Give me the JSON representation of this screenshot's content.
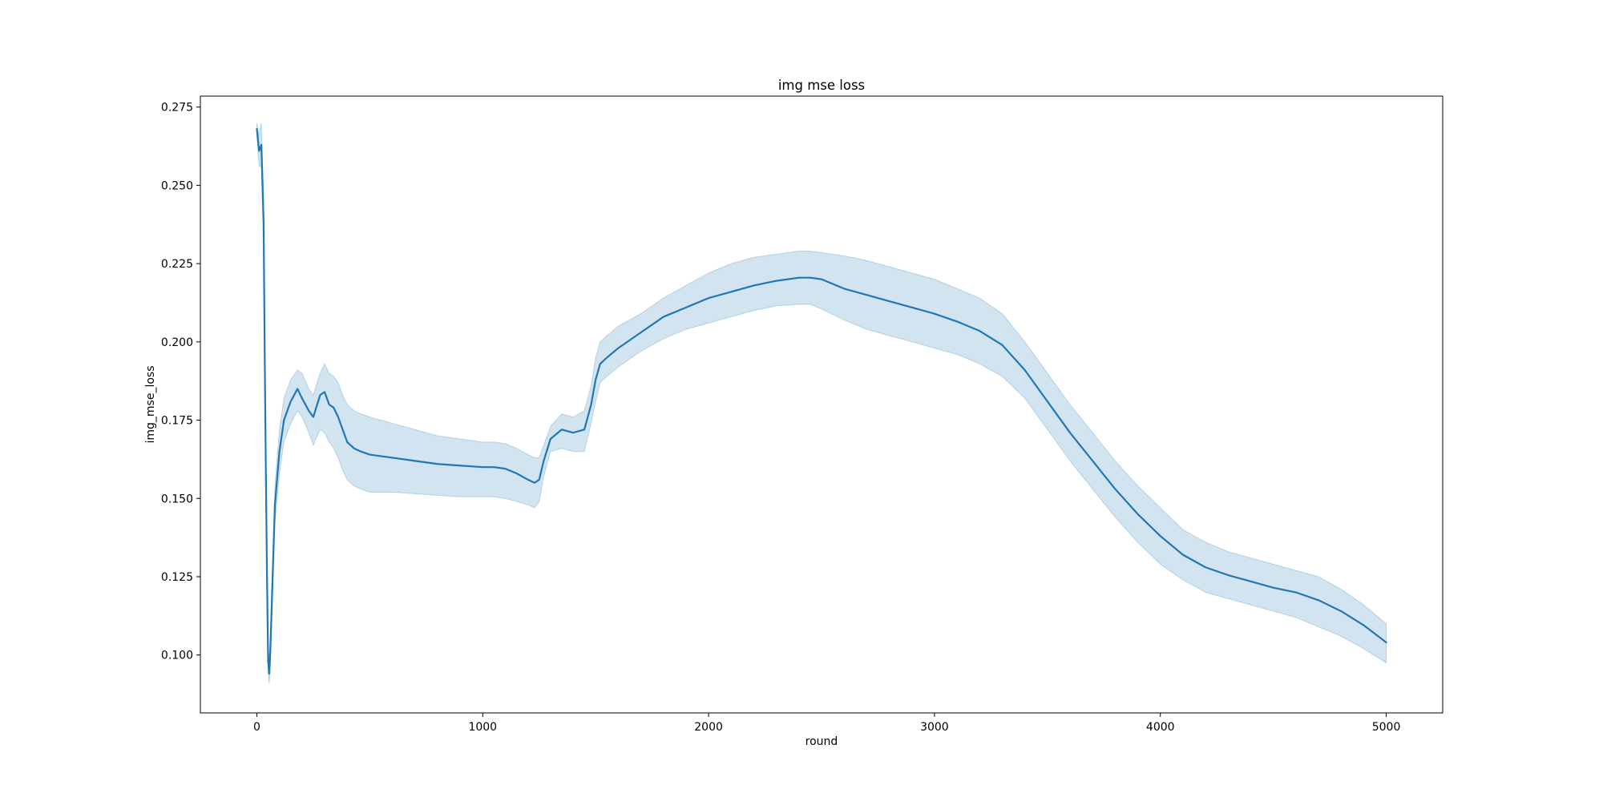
{
  "chart_data": {
    "type": "line",
    "title": "img mse loss",
    "xlabel": "round",
    "ylabel": "img_mse_loss",
    "xlim": [
      -250,
      5250
    ],
    "ylim": [
      0.0815,
      0.2785
    ],
    "xticks": [
      0,
      1000,
      2000,
      3000,
      4000,
      5000
    ],
    "xtick_labels": [
      "0",
      "1000",
      "2000",
      "3000",
      "4000",
      "5000"
    ],
    "yticks": [
      0.1,
      0.125,
      0.15,
      0.175,
      0.2,
      0.225,
      0.25,
      0.275
    ],
    "ytick_labels": [
      "0.100",
      "0.125",
      "0.150",
      "0.175",
      "0.200",
      "0.225",
      "0.250",
      "0.275"
    ],
    "grid": false,
    "legend": "none",
    "series": [
      {
        "color": "#1f77b4",
        "band_color": "#1f77b4",
        "band_opacity": 0.2,
        "x": [
          0,
          10,
          20,
          30,
          35,
          40,
          45,
          50,
          55,
          60,
          70,
          80,
          100,
          120,
          150,
          180,
          200,
          230,
          250,
          280,
          300,
          320,
          340,
          360,
          380,
          400,
          430,
          460,
          500,
          600,
          700,
          800,
          900,
          1000,
          1050,
          1100,
          1150,
          1200,
          1230,
          1250,
          1270,
          1300,
          1350,
          1400,
          1450,
          1480,
          1500,
          1520,
          1550,
          1600,
          1700,
          1800,
          1900,
          2000,
          2100,
          2200,
          2300,
          2400,
          2450,
          2500,
          2600,
          2700,
          2800,
          2900,
          3000,
          3100,
          3200,
          3300,
          3400,
          3500,
          3600,
          3700,
          3800,
          3900,
          4000,
          4100,
          4200,
          4300,
          4400,
          4500,
          4600,
          4700,
          4800,
          4900,
          5000
        ],
        "y": [
          0.268,
          0.261,
          0.263,
          0.238,
          0.195,
          0.158,
          0.125,
          0.098,
          0.094,
          0.102,
          0.125,
          0.148,
          0.165,
          0.175,
          0.181,
          0.185,
          0.182,
          0.178,
          0.176,
          0.183,
          0.184,
          0.18,
          0.179,
          0.176,
          0.172,
          0.168,
          0.166,
          0.165,
          0.164,
          0.163,
          0.162,
          0.161,
          0.1605,
          0.16,
          0.16,
          0.1595,
          0.158,
          0.156,
          0.155,
          0.156,
          0.162,
          0.169,
          0.172,
          0.171,
          0.172,
          0.18,
          0.188,
          0.193,
          0.195,
          0.198,
          0.203,
          0.208,
          0.211,
          0.214,
          0.216,
          0.218,
          0.2195,
          0.2205,
          0.2205,
          0.22,
          0.217,
          0.215,
          0.213,
          0.211,
          0.209,
          0.2065,
          0.2035,
          0.199,
          0.191,
          0.181,
          0.171,
          0.162,
          0.153,
          0.145,
          0.138,
          0.132,
          0.128,
          0.1255,
          0.1235,
          0.1215,
          0.12,
          0.1175,
          0.114,
          0.1095,
          0.104
        ],
        "lower": [
          0.266,
          0.256,
          0.256,
          0.23,
          0.188,
          0.15,
          0.118,
          0.094,
          0.091,
          0.097,
          0.12,
          0.142,
          0.158,
          0.168,
          0.174,
          0.178,
          0.176,
          0.171,
          0.167,
          0.172,
          0.171,
          0.168,
          0.166,
          0.163,
          0.159,
          0.156,
          0.154,
          0.153,
          0.152,
          0.152,
          0.1515,
          0.151,
          0.1505,
          0.1505,
          0.1505,
          0.15,
          0.149,
          0.148,
          0.147,
          0.149,
          0.157,
          0.165,
          0.166,
          0.165,
          0.165,
          0.174,
          0.181,
          0.187,
          0.189,
          0.192,
          0.197,
          0.201,
          0.204,
          0.206,
          0.208,
          0.21,
          0.2115,
          0.212,
          0.212,
          0.2105,
          0.207,
          0.204,
          0.202,
          0.2,
          0.198,
          0.196,
          0.193,
          0.189,
          0.182,
          0.172,
          0.162,
          0.153,
          0.144,
          0.136,
          0.129,
          0.124,
          0.12,
          0.118,
          0.116,
          0.114,
          0.112,
          0.109,
          0.106,
          0.102,
          0.0975
        ],
        "upper": [
          0.27,
          0.266,
          0.27,
          0.246,
          0.202,
          0.166,
          0.132,
          0.103,
          0.098,
          0.107,
          0.13,
          0.154,
          0.172,
          0.182,
          0.188,
          0.191,
          0.19,
          0.185,
          0.183,
          0.19,
          0.193,
          0.19,
          0.189,
          0.187,
          0.183,
          0.18,
          0.178,
          0.177,
          0.176,
          0.174,
          0.172,
          0.17,
          0.169,
          0.168,
          0.168,
          0.1675,
          0.166,
          0.164,
          0.163,
          0.163,
          0.167,
          0.173,
          0.177,
          0.176,
          0.178,
          0.186,
          0.195,
          0.2,
          0.202,
          0.205,
          0.209,
          0.214,
          0.218,
          0.222,
          0.225,
          0.227,
          0.228,
          0.229,
          0.229,
          0.2285,
          0.2275,
          0.226,
          0.224,
          0.222,
          0.22,
          0.217,
          0.214,
          0.209,
          0.2,
          0.19,
          0.18,
          0.171,
          0.162,
          0.154,
          0.147,
          0.14,
          0.136,
          0.133,
          0.131,
          0.129,
          0.127,
          0.125,
          0.121,
          0.116,
          0.11
        ]
      }
    ]
  }
}
